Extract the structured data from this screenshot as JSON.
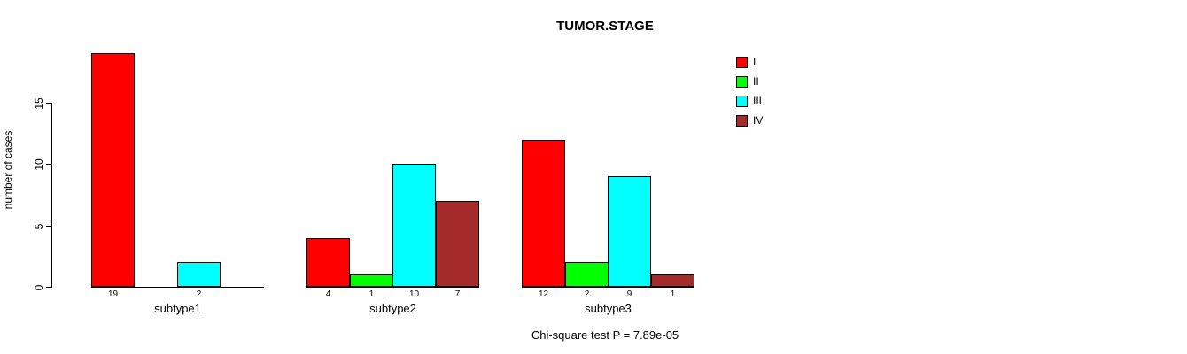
{
  "chart_data": {
    "type": "bar",
    "title": "TUMOR.STAGE",
    "xlabel": "",
    "ylabel": "number of cases",
    "caption": "Chi-square test P = 7.89e-05",
    "categories": [
      "subtype1",
      "subtype2",
      "subtype3"
    ],
    "series": [
      {
        "name": "I",
        "color": "#FF0000",
        "values": [
          19,
          4,
          12
        ]
      },
      {
        "name": "II",
        "color": "#00FF00",
        "values": [
          0,
          1,
          2
        ]
      },
      {
        "name": "III",
        "color": "#00FFFF",
        "values": [
          2,
          10,
          9
        ]
      },
      {
        "name": "IV",
        "color": "#A52A2A",
        "values": [
          0,
          7,
          1
        ]
      }
    ],
    "bar_value_labels": [
      [
        "19",
        "",
        "2",
        ""
      ],
      [
        "4",
        "1",
        "10",
        "7"
      ],
      [
        "12",
        "2",
        "9",
        "1"
      ]
    ],
    "yticks": [
      0,
      5,
      10,
      15
    ],
    "ylim": [
      0,
      19
    ],
    "grid": false,
    "legend_position": "top-right",
    "legend_labels": [
      "I",
      "II",
      "III",
      "IV"
    ],
    "background_color": "#FFFFFF",
    "text_color": "#000000"
  }
}
